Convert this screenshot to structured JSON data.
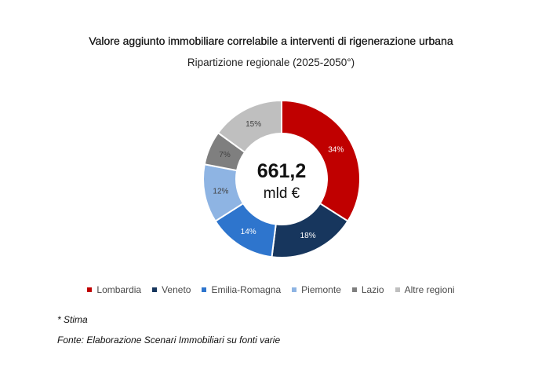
{
  "chart_data": {
    "type": "pie",
    "variant": "donut",
    "title": "Valore aggiunto immobiliare correlabile a interventi di rigenerazione urbana",
    "subtitle": "Ripartizione regionale (2025-2050°)",
    "center_value": "661,2",
    "center_unit": "mld €",
    "unit": "%",
    "legend_position": "bottom",
    "categories": [
      "Lombardia",
      "Veneto",
      "Emilia-Romagna",
      "Piemonte",
      "Lazio",
      "Altre regioni"
    ],
    "values": [
      34,
      18,
      14,
      12,
      7,
      15
    ],
    "labels": [
      "34%",
      "18%",
      "14%",
      "12%",
      "7%",
      "15%"
    ],
    "colors": [
      "#c00000",
      "#17365d",
      "#2e75cd",
      "#8eb4e3",
      "#7f7f7f",
      "#bfbfbf"
    ],
    "label_colors": [
      "#ffffff",
      "#ffffff",
      "#ffffff",
      "#404040",
      "#404040",
      "#404040"
    ]
  },
  "footnotes": {
    "note": "* Stima",
    "source": "Fonte: Elaborazione Scenari Immobiliari su fonti varie"
  }
}
